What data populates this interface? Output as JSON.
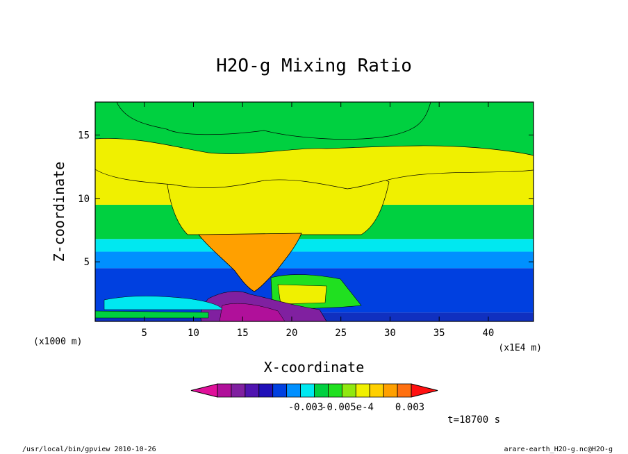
{
  "chart_data": {
    "type": "heatmap",
    "title": "H2O-g Mixing Ratio",
    "xlabel": "X-coordinate",
    "ylabel": "Z-coordinate",
    "x_unit_left": "(x1000 m)",
    "x_unit_right": "(x1E4 m)",
    "xlim": [
      0,
      44.6
    ],
    "ylim": [
      0.3,
      17.6
    ],
    "xticks": [
      5,
      10,
      15,
      20,
      25,
      30,
      35,
      40
    ],
    "yticks": [
      5,
      10,
      15
    ],
    "grid": false,
    "colorbar": {
      "colors": [
        "#e0109a",
        "#b0109a",
        "#8020a0",
        "#5014b0",
        "#2010b8",
        "#0040e0",
        "#0090ff",
        "#00e8f0",
        "#00d040",
        "#20e020",
        "#90e810",
        "#f0f000",
        "#ffd000",
        "#ffa000",
        "#ff7010",
        "#ff1010"
      ],
      "tick_labels": [
        "-0.003",
        "-0.005e-4",
        "0.003"
      ]
    },
    "bands": [
      {
        "z": [
          0.3,
          1.0
        ],
        "color": "#1030c0"
      },
      {
        "z": [
          1.0,
          4.5
        ],
        "color": "#0040e0"
      },
      {
        "z": [
          4.5,
          5.8
        ],
        "color": "#0090ff"
      },
      {
        "z": [
          5.8,
          6.8
        ],
        "color": "#00e8f0"
      },
      {
        "z": [
          6.8,
          9.5
        ],
        "color": "#00d040"
      },
      {
        "z": [
          9.5,
          12.5
        ],
        "color": "#f0f000"
      },
      {
        "z": [
          12.5,
          17.6
        ],
        "color": "#00d040"
      }
    ],
    "time_label": "t=18700 s"
  },
  "footer": {
    "left": "/usr/local/bin/gpview  2010-10-26",
    "right": "arare-earth_H2O-g.nc@H2O-g"
  }
}
